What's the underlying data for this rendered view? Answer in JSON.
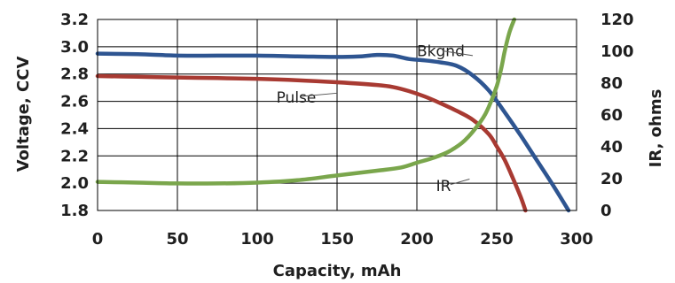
{
  "chart_data": {
    "type": "line",
    "xlabel": "Capacity, mAh",
    "ylabel": "Voltage, CCV",
    "y2label": "IR, ohms",
    "xlim": [
      0,
      300
    ],
    "ylim": [
      1.8,
      3.2
    ],
    "y2lim": [
      0,
      120
    ],
    "x_ticks": [
      0,
      50,
      100,
      150,
      200,
      250,
      300
    ],
    "y_ticks": [
      1.8,
      2.0,
      2.2,
      2.4,
      2.6,
      2.8,
      3.0,
      3.2
    ],
    "y2_ticks": [
      0,
      20,
      40,
      60,
      80,
      100,
      120
    ],
    "y_tick_labels": [
      "1.8",
      "2.0",
      "2.2",
      "2.4",
      "2.6",
      "2.8",
      "3.0",
      "3.2"
    ],
    "y2_tick_labels": [
      "0",
      "20",
      "40",
      "60",
      "80",
      "100",
      "120"
    ],
    "x_tick_labels": [
      "0",
      "50",
      "100",
      "150",
      "200",
      "250",
      "300"
    ],
    "grid": true,
    "series": [
      {
        "name": "Bkgnd",
        "axis": "left",
        "color": "#2e5591",
        "x": [
          0,
          25,
          50,
          75,
          100,
          125,
          150,
          165,
          175,
          185,
          195,
          205,
          215,
          225,
          235,
          245,
          255,
          265,
          275,
          285,
          295
        ],
        "y": [
          2.95,
          2.945,
          2.935,
          2.935,
          2.935,
          2.93,
          2.925,
          2.93,
          2.94,
          2.935,
          2.91,
          2.9,
          2.885,
          2.86,
          2.79,
          2.68,
          2.52,
          2.35,
          2.17,
          1.99,
          1.8
        ]
      },
      {
        "name": "Pulse",
        "axis": "left",
        "color": "#a83a32",
        "x": [
          0,
          25,
          50,
          75,
          100,
          125,
          150,
          175,
          185,
          195,
          205,
          215,
          225,
          235,
          245,
          250,
          255,
          260,
          265,
          268
        ],
        "y": [
          2.785,
          2.78,
          2.775,
          2.77,
          2.765,
          2.755,
          2.74,
          2.72,
          2.705,
          2.675,
          2.635,
          2.585,
          2.53,
          2.465,
          2.36,
          2.27,
          2.17,
          2.04,
          1.9,
          1.8
        ]
      },
      {
        "name": "IR",
        "axis": "right",
        "color": "#7aa64c",
        "x": [
          0,
          25,
          50,
          75,
          100,
          125,
          150,
          175,
          190,
          200,
          210,
          220,
          230,
          240,
          245,
          250,
          253,
          255,
          258,
          261
        ],
        "y": [
          18,
          17.5,
          17,
          17,
          17.5,
          19,
          22,
          25,
          27,
          30,
          33,
          37,
          44,
          56,
          65,
          78,
          90,
          100,
          112,
          120
        ]
      }
    ]
  }
}
